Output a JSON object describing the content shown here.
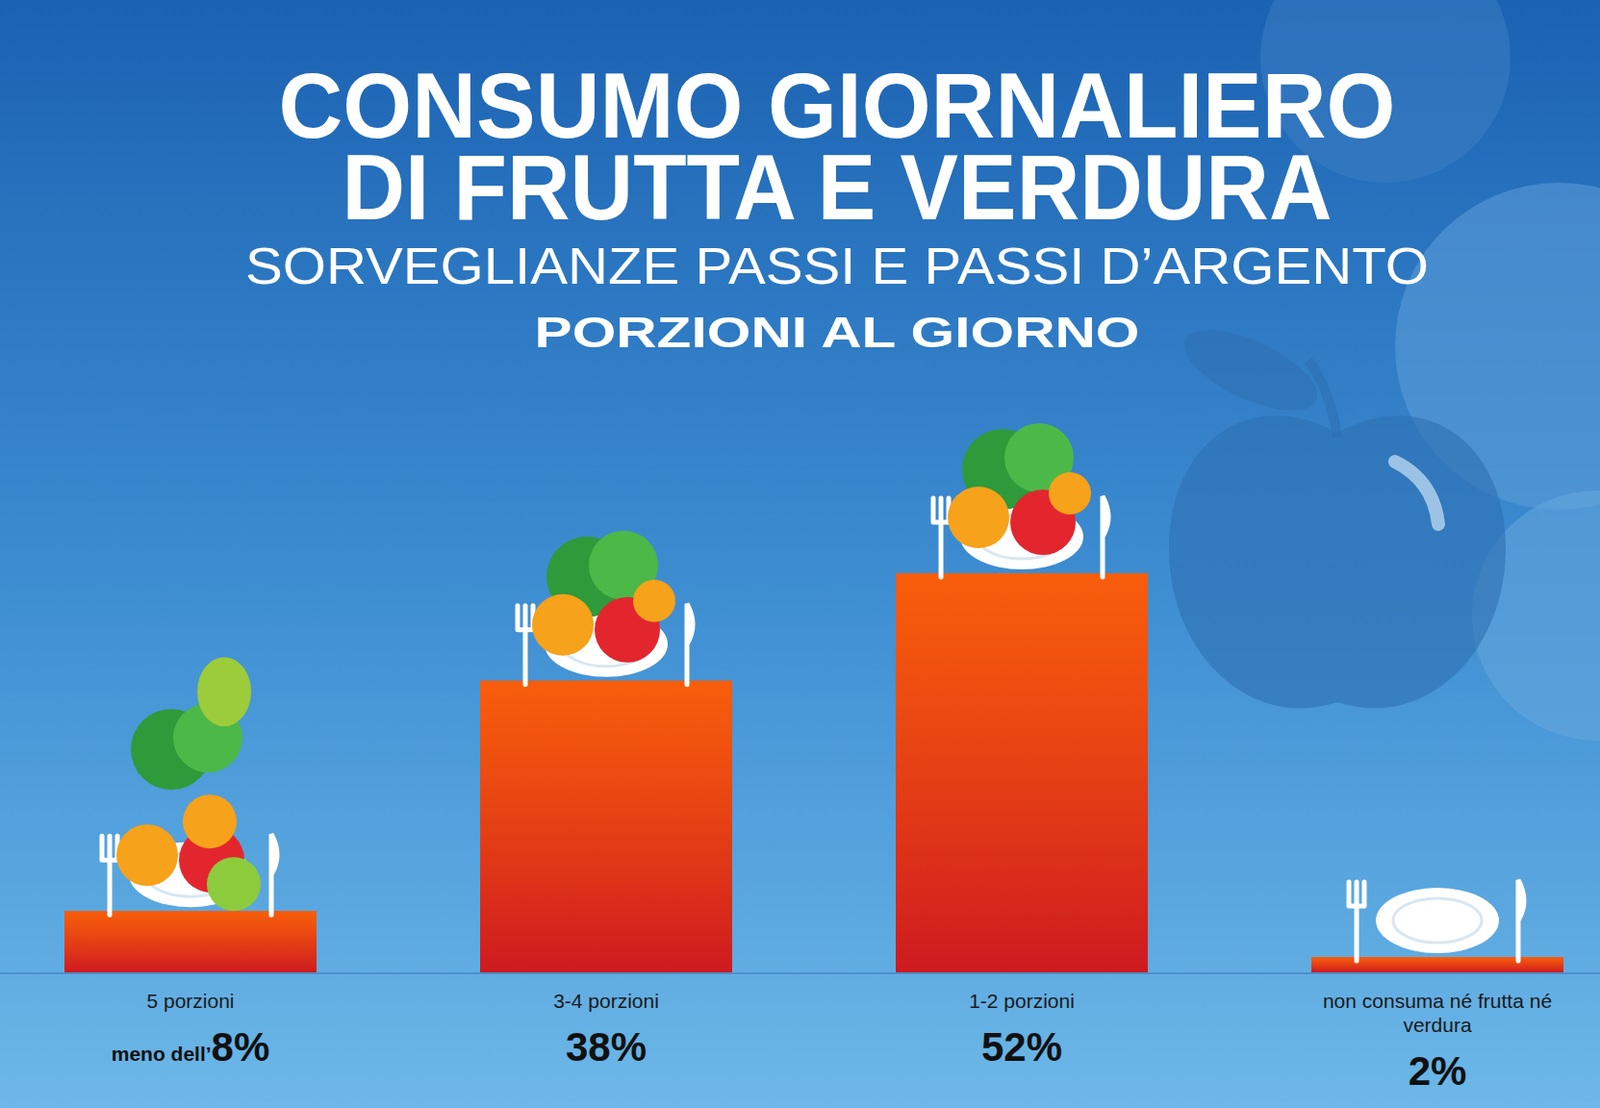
{
  "chart_data": {
    "type": "bar",
    "title": [
      "CONSUMO GIORNALIERO",
      "DI FRUTTA E VERDURA"
    ],
    "subtitle": [
      "SORVEGLIANZE PASSI E PASSI D’ARGENTO",
      "PORZIONI AL GIORNO"
    ],
    "categories": [
      "5 porzioni",
      "3-4 porzioni",
      "1-2 porzioni",
      "non consuma né frutta né verdura"
    ],
    "values": [
      8,
      38,
      52,
      2
    ],
    "value_labels": [
      "meno dell’8%",
      "38%",
      "52%",
      "2%"
    ],
    "color": "#f23a14",
    "data_labels": true,
    "tick_labels": "x"
  }
}
